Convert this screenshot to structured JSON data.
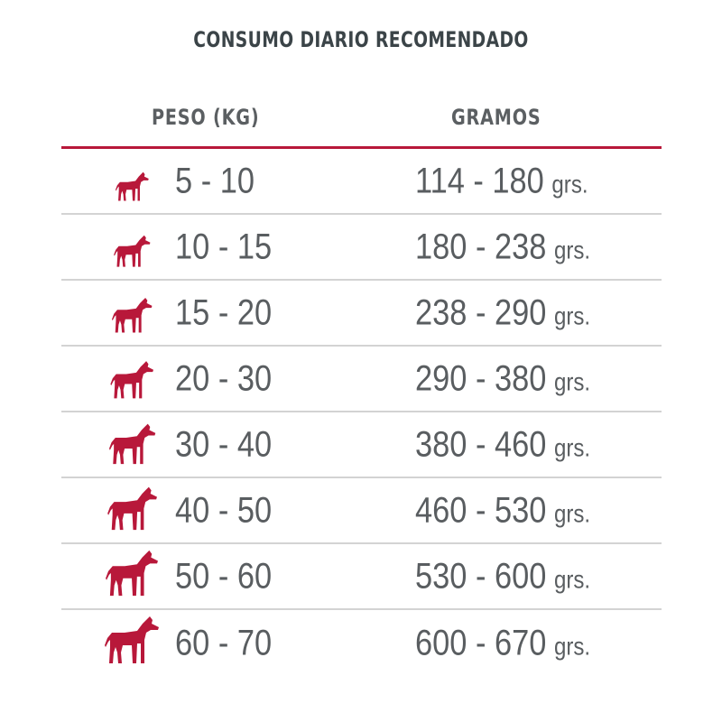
{
  "title": "CONSUMO DIARIO RECOMENDADO",
  "columns": {
    "weight": "PESO (KG)",
    "grams": "GRAMOS"
  },
  "unit": "grs.",
  "rows": [
    {
      "weight": "5 - 10",
      "grams": "114 - 180",
      "dog_scale": 0.62
    },
    {
      "weight": "10 - 15",
      "grams": "180 - 238",
      "dog_scale": 0.68
    },
    {
      "weight": "15 - 20",
      "grams": "238 - 290",
      "dog_scale": 0.74
    },
    {
      "weight": "20 - 30",
      "grams": "290 - 380",
      "dog_scale": 0.8
    },
    {
      "weight": "30 - 40",
      "grams": "380 - 460",
      "dog_scale": 0.86
    },
    {
      "weight": "40 - 50",
      "grams": "460 - 530",
      "dog_scale": 0.92
    },
    {
      "weight": "50 - 60",
      "grams": "530 - 600",
      "dog_scale": 0.96
    },
    {
      "weight": "60 - 70",
      "grams": "600 - 670",
      "dog_scale": 1.0
    }
  ],
  "colors": {
    "accent": "#b8183a",
    "text": "#595d60",
    "rule": "#d3d3d3"
  },
  "icon": "dog-icon"
}
